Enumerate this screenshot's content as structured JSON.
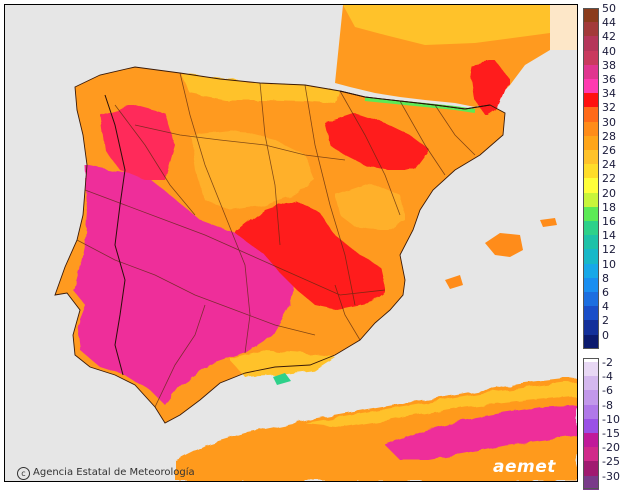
{
  "map": {
    "credit_text": "Agencia Estatal de Meteorología",
    "credit_icon": "copyright-icon",
    "brand_text": "aemet",
    "colors": {
      "sea": "#e6e6e6",
      "land_base": "#ff9a1f",
      "hot_magenta": "#ee2f9a",
      "hot_red": "#ff1a1a",
      "warm_orange": "#ff7a1a",
      "mild_yellow": "#ffd23a",
      "border": "#5a2a10"
    }
  },
  "legend": {
    "positive": [
      {
        "label": "50",
        "color": "#8b3c1c"
      },
      {
        "label": "44",
        "color": "#a33a3a"
      },
      {
        "label": "42",
        "color": "#b5365a"
      },
      {
        "label": "40",
        "color": "#c93a5e"
      },
      {
        "label": "38",
        "color": "#e0358f"
      },
      {
        "label": "36",
        "color": "#ff3ab0"
      },
      {
        "label": "34",
        "color": "#ff1010"
      },
      {
        "label": "32",
        "color": "#ff6a1a"
      },
      {
        "label": "30",
        "color": "#ff8c1a"
      },
      {
        "label": "28",
        "color": "#ffa51a"
      },
      {
        "label": "26",
        "color": "#ffc22a"
      },
      {
        "label": "24",
        "color": "#ffdd2a"
      },
      {
        "label": "22",
        "color": "#ffff3a"
      },
      {
        "label": "20",
        "color": "#c8f53a"
      },
      {
        "label": "18",
        "color": "#5cea55"
      },
      {
        "label": "16",
        "color": "#2ed18a"
      },
      {
        "label": "14",
        "color": "#1ec2a8"
      },
      {
        "label": "12",
        "color": "#18b8c8"
      },
      {
        "label": "10",
        "color": "#18a8e8"
      },
      {
        "label": "8",
        "color": "#1a8ef0"
      },
      {
        "label": "6",
        "color": "#1c6ee0"
      },
      {
        "label": "4",
        "color": "#1a4ec8"
      },
      {
        "label": "2",
        "color": "#14309a"
      },
      {
        "label": "0",
        "color": "#0c1a6e"
      }
    ],
    "negative": [
      {
        "label": "-2",
        "color": "#e8d8f4"
      },
      {
        "label": "-4",
        "color": "#d4b8ee"
      },
      {
        "label": "-6",
        "color": "#c298ea"
      },
      {
        "label": "-8",
        "color": "#b078e8"
      },
      {
        "label": "-10",
        "color": "#9a50e6"
      },
      {
        "label": "-15",
        "color": "#c01a9a"
      },
      {
        "label": "-20",
        "color": "#d02a8a"
      },
      {
        "label": "-25",
        "color": "#a01a70"
      },
      {
        "label": "-30",
        "color": "#7a3a8a"
      }
    ]
  }
}
